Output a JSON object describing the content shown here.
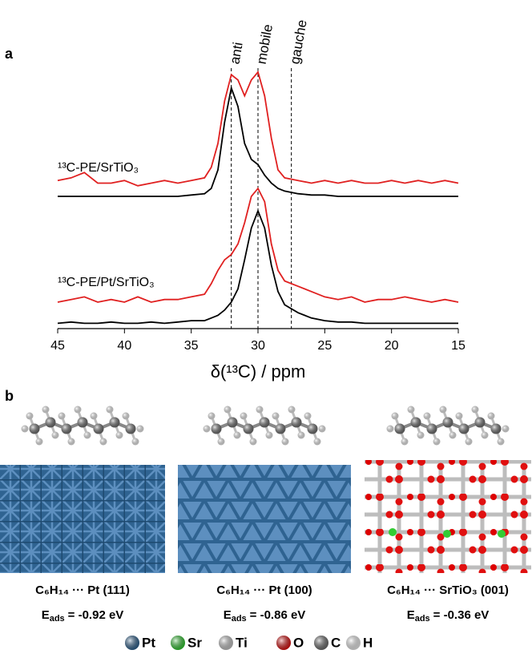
{
  "chart_data": {
    "type": "line",
    "panel_label": "a",
    "x_label": "δ(¹³C) / ppm",
    "x": [
      45,
      44,
      43,
      42,
      41,
      40,
      39,
      38,
      37,
      36,
      35,
      34,
      33.5,
      33,
      32.5,
      32,
      31.5,
      31,
      30.5,
      30,
      29.5,
      29,
      28.5,
      28,
      27,
      26,
      25,
      24,
      23,
      22,
      21,
      20,
      19,
      18,
      17,
      16,
      15
    ],
    "xlim": [
      45,
      15
    ],
    "xticks": [
      45,
      40,
      35,
      30,
      25,
      20,
      15
    ],
    "ylim": [
      0,
      100
    ],
    "series": [
      {
        "color": "#e02020",
        "values": [
          56,
          57,
          59,
          55,
          55,
          56,
          54,
          55,
          56,
          55,
          56,
          57,
          61,
          70,
          86,
          96,
          94,
          88,
          94,
          97,
          88,
          72,
          60,
          57,
          56,
          55,
          56,
          55,
          56,
          55,
          55,
          56,
          55,
          56,
          55,
          56,
          55
        ]
      },
      {
        "color": "#000000",
        "values": [
          50,
          50,
          50,
          50,
          50,
          50,
          50,
          50,
          50,
          50,
          50.5,
          51,
          53,
          60,
          78,
          91,
          84,
          70,
          64,
          62,
          58,
          55,
          53,
          52,
          51,
          50.5,
          50.5,
          50,
          50,
          50,
          50,
          50,
          50,
          50,
          50,
          50,
          50
        ]
      },
      {
        "color": "#e02020",
        "values": [
          10,
          11,
          12,
          10,
          11,
          10,
          12,
          10,
          11,
          11,
          12,
          13,
          17,
          22,
          26,
          28,
          32,
          40,
          50,
          53,
          48,
          32,
          22,
          18,
          16,
          14,
          12,
          11,
          12,
          10,
          11,
          11,
          12,
          11,
          10,
          11,
          10
        ]
      },
      {
        "color": "#000000",
        "values": [
          2,
          2.5,
          2,
          2,
          2.5,
          2,
          2,
          2.5,
          2,
          2.5,
          3,
          3,
          4,
          5,
          7,
          10,
          15,
          26,
          38,
          44.5,
          38,
          24,
          14,
          9,
          6,
          4,
          3,
          2.5,
          2.5,
          2,
          2,
          2,
          2,
          2,
          2,
          2,
          2
        ]
      }
    ],
    "sample_labels": [
      "¹³C-PE/SrTiO₃",
      "¹³C-PE/Pt/SrTiO₃"
    ],
    "annotations": [
      {
        "x": 32,
        "text": "anti"
      },
      {
        "x": 30,
        "text": "mobile"
      },
      {
        "x": 27.5,
        "text": "gauche"
      }
    ]
  },
  "panel_b": {
    "panel_label": "b",
    "structures": [
      {
        "title": "C₆H₁₄ ··· Pt (111)",
        "energy": {
          "symbol": "E",
          "subscript": "ads",
          "value": "= -0.92 eV"
        }
      },
      {
        "title": "C₆H₁₄ ··· Pt (100)",
        "energy": {
          "symbol": "E",
          "subscript": "ads",
          "value": "= -0.86 eV"
        }
      },
      {
        "title": "C₆H₁₄ ··· SrTiO₃ (001)",
        "energy": {
          "symbol": "E",
          "subscript": "ads",
          "value": "= -0.36 eV"
        }
      }
    ],
    "legend": [
      {
        "name": "Pt",
        "color": "#2f6391"
      },
      {
        "name": "Sr",
        "color": "#33cc33"
      },
      {
        "name": "Ti",
        "color": "#c8c8c8"
      },
      {
        "name": "O",
        "color": "#e01010"
      },
      {
        "name": "C",
        "color": "#6e6e6e"
      },
      {
        "name": "H",
        "color": "#f2f2f2"
      }
    ]
  }
}
